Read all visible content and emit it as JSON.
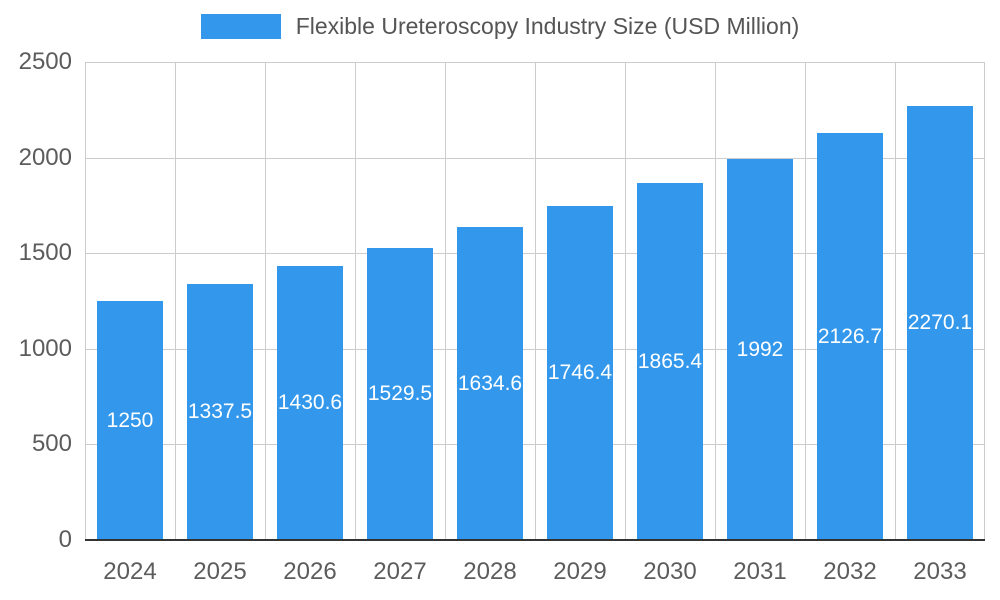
{
  "legend": {
    "label": "Flexible Ureteroscopy Industry Size (USD Million)",
    "swatch_color": "#3398EC"
  },
  "chart_data": {
    "type": "bar",
    "title": "Flexible Ureteroscopy Industry Size (USD Million)",
    "categories": [
      "2024",
      "2025",
      "2026",
      "2027",
      "2028",
      "2029",
      "2030",
      "2031",
      "2032",
      "2033"
    ],
    "values": [
      1250,
      1337.5,
      1430.6,
      1529.5,
      1634.6,
      1746.4,
      1865.4,
      1992,
      2126.7,
      2270.1
    ],
    "xlabel": "",
    "ylabel": "",
    "ylim": [
      0,
      2500
    ],
    "yticks": [
      0,
      500,
      1000,
      1500,
      2000,
      2500
    ],
    "grid": true,
    "legend_position": "top",
    "bar_color": "#3398EC",
    "value_label_color": "#ffffff",
    "axis_label_color": "#5c5c5c",
    "gridline_color": "#cccccc"
  }
}
